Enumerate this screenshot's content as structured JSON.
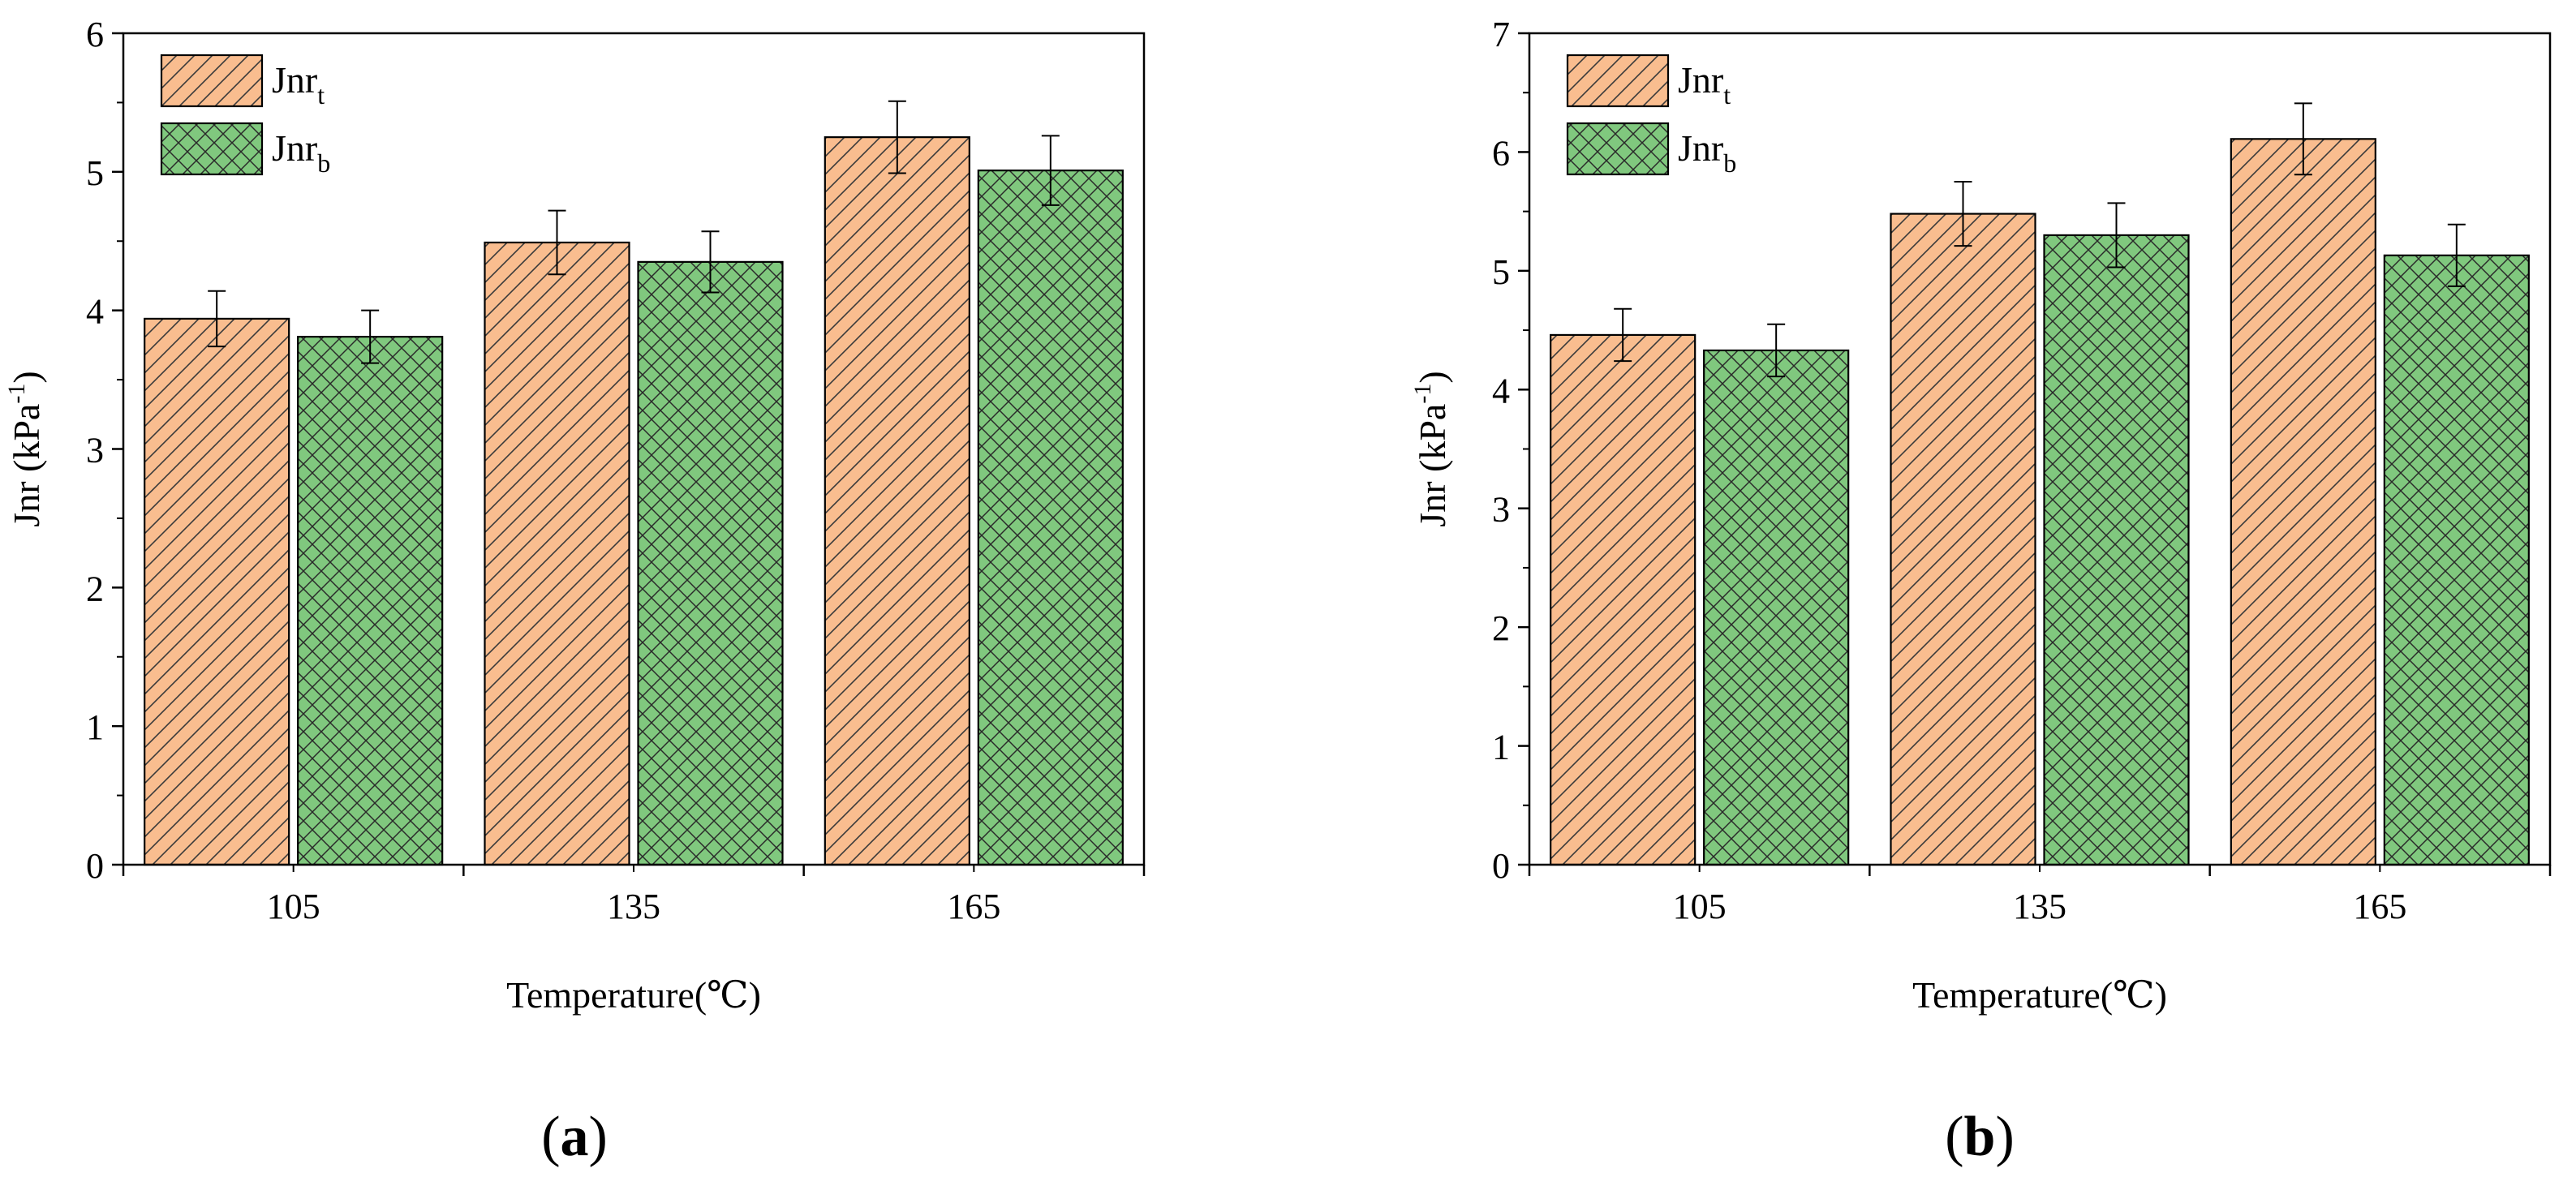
{
  "chart_data": [
    {
      "panel_label": "a",
      "type": "bar",
      "categories": [
        "105",
        "135",
        "165"
      ],
      "series": [
        {
          "name": "Jnr",
          "name_sub": "t",
          "color": "#f9bd8f",
          "pattern": "diagonal",
          "values": [
            3.94,
            4.49,
            5.25
          ],
          "errors": [
            0.2,
            0.23,
            0.26
          ]
        },
        {
          "name": "Jnr",
          "name_sub": "b",
          "color": "#80c87e",
          "pattern": "crosshatch",
          "values": [
            3.81,
            4.35,
            5.01
          ],
          "errors": [
            0.19,
            0.22,
            0.25
          ]
        }
      ],
      "xlabel": "Temperature(℃)",
      "ylabel": {
        "prefix": "Jnr (kPa",
        "sup": "-1",
        "suffix": ")"
      },
      "ylim": [
        0,
        6
      ],
      "yticks": [
        "0",
        "1",
        "2",
        "3",
        "4",
        "5",
        "6"
      ],
      "legend": "top-left"
    },
    {
      "panel_label": "b",
      "type": "bar",
      "categories": [
        "105",
        "135",
        "165"
      ],
      "series": [
        {
          "name": "Jnr",
          "name_sub": "t",
          "color": "#f9bd8f",
          "pattern": "diagonal",
          "values": [
            4.46,
            5.48,
            6.11
          ],
          "errors": [
            0.22,
            0.27,
            0.3
          ]
        },
        {
          "name": "Jnr",
          "name_sub": "b",
          "color": "#80c87e",
          "pattern": "crosshatch",
          "values": [
            4.33,
            5.3,
            5.13
          ],
          "errors": [
            0.22,
            0.27,
            0.26
          ]
        }
      ],
      "xlabel": "Temperature(℃)",
      "ylabel": {
        "prefix": "Jnr (kPa",
        "sup": "-1",
        "suffix": ")"
      },
      "ylim": [
        0,
        7
      ],
      "yticks": [
        "0",
        "1",
        "2",
        "3",
        "4",
        "5",
        "6",
        "7"
      ],
      "legend": "top-left"
    }
  ]
}
